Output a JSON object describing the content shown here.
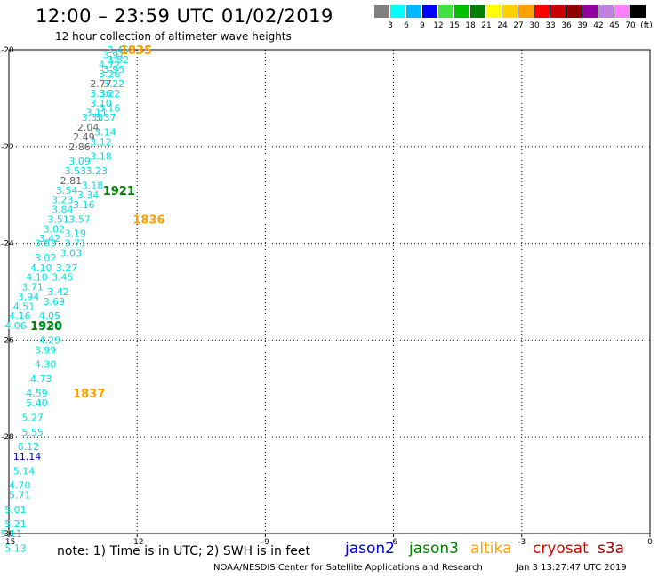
{
  "header": {
    "title": "12:00 – 23:59 UTC 01/02/2019",
    "subtitle": "12 hour collection of altimeter wave heights"
  },
  "colorbar": {
    "colors": [
      "#808080",
      "#00ffff",
      "#00b8ff",
      "#0000ff",
      "#40e040",
      "#00c000",
      "#008000",
      "#ffff00",
      "#ffd000",
      "#ffa000",
      "#ff0000",
      "#c80000",
      "#900000",
      "#9000a0",
      "#c080e0",
      "#ff80ff",
      "#000000"
    ],
    "labels": [
      "3",
      "6",
      "9",
      "12",
      "15",
      "18",
      "21",
      "24",
      "27",
      "30",
      "33",
      "36",
      "39",
      "42",
      "45",
      "70",
      "(ft)"
    ]
  },
  "map": {
    "lon_ticks": [
      "-15",
      "-12",
      "-9",
      "-6",
      "-3",
      "0"
    ],
    "lat_ticks": [
      "-20",
      "-22",
      "-24",
      "-26",
      "-28",
      "-30"
    ],
    "lon_values": [
      -15,
      -12,
      -9,
      -6,
      -3,
      0
    ],
    "lat_values": [
      -20,
      -22,
      -24,
      -26,
      -28,
      -30
    ],
    "time_labels": [
      {
        "text": "1835",
        "lon": -12.4,
        "lat": -20.0,
        "color": "#ffa000"
      },
      {
        "text": "1921",
        "lon": -12.8,
        "lat": -22.9,
        "color": "#008000"
      },
      {
        "text": "1836",
        "lon": -12.1,
        "lat": -23.5,
        "color": "#ffa000"
      },
      {
        "text": "1920",
        "lon": -14.5,
        "lat": -25.7,
        "color": "#008000"
      },
      {
        "text": "1837",
        "lon": -13.5,
        "lat": -27.1,
        "color": "#ffa000"
      }
    ],
    "wave_heights": [
      {
        "text": "3.45",
        "lon": -12.7,
        "lat": -20.0,
        "color": "#00e0e0"
      },
      {
        "text": "3.91",
        "lon": -12.8,
        "lat": -20.1,
        "color": "#00e0e0"
      },
      {
        "text": "3.52",
        "lon": -12.7,
        "lat": -20.2,
        "color": "#00e0e0"
      },
      {
        "text": "4.72",
        "lon": -12.9,
        "lat": -20.3,
        "color": "#00e0e0"
      },
      {
        "text": "3.26",
        "lon": -12.9,
        "lat": -20.5,
        "color": "#00e0e0"
      },
      {
        "text": "3.95",
        "lon": -12.8,
        "lat": -20.4,
        "color": "#00e0e0"
      },
      {
        "text": "2.77",
        "lon": -13.1,
        "lat": -20.7,
        "color": "#606060"
      },
      {
        "text": "3.22",
        "lon": -12.8,
        "lat": -20.7,
        "color": "#00e0e0"
      },
      {
        "text": "3.36",
        "lon": -13.1,
        "lat": -20.9,
        "color": "#00e0e0"
      },
      {
        "text": "3.22",
        "lon": -12.9,
        "lat": -20.9,
        "color": "#00e0e0"
      },
      {
        "text": "3.10",
        "lon": -13.1,
        "lat": -21.1,
        "color": "#00e0e0"
      },
      {
        "text": "3.16",
        "lon": -12.9,
        "lat": -21.2,
        "color": "#00e0e0"
      },
      {
        "text": "3.11",
        "lon": -13.2,
        "lat": -21.3,
        "color": "#00e0e0"
      },
      {
        "text": "3.33",
        "lon": -13.3,
        "lat": -21.4,
        "color": "#00e0e0"
      },
      {
        "text": "3.37",
        "lon": -13.0,
        "lat": -21.4,
        "color": "#00e0e0"
      },
      {
        "text": "2.04",
        "lon": -13.4,
        "lat": -21.6,
        "color": "#606060"
      },
      {
        "text": "3.14",
        "lon": -13.0,
        "lat": -21.7,
        "color": "#00e0e0"
      },
      {
        "text": "2.49",
        "lon": -13.5,
        "lat": -21.8,
        "color": "#606060"
      },
      {
        "text": "3.12",
        "lon": -13.1,
        "lat": -21.9,
        "color": "#00e0e0"
      },
      {
        "text": "2.86",
        "lon": -13.6,
        "lat": -22.0,
        "color": "#606060"
      },
      {
        "text": "3.18",
        "lon": -13.1,
        "lat": -22.2,
        "color": "#00e0e0"
      },
      {
        "text": "3.09",
        "lon": -13.6,
        "lat": -22.3,
        "color": "#00e0e0"
      },
      {
        "text": "3.53",
        "lon": -13.7,
        "lat": -22.5,
        "color": "#00e0e0"
      },
      {
        "text": "3.23",
        "lon": -13.2,
        "lat": -22.5,
        "color": "#00e0e0"
      },
      {
        "text": "2.81",
        "lon": -13.8,
        "lat": -22.7,
        "color": "#606060"
      },
      {
        "text": "3.18",
        "lon": -13.3,
        "lat": -22.8,
        "color": "#00e0e0"
      },
      {
        "text": "3.54",
        "lon": -13.9,
        "lat": -22.9,
        "color": "#00e0e0"
      },
      {
        "text": "3.34",
        "lon": -13.4,
        "lat": -23.0,
        "color": "#00e0e0"
      },
      {
        "text": "3.23",
        "lon": -14.0,
        "lat": -23.1,
        "color": "#00e0e0"
      },
      {
        "text": "3.16",
        "lon": -13.5,
        "lat": -23.2,
        "color": "#00e0e0"
      },
      {
        "text": "3.84",
        "lon": -14.0,
        "lat": -23.3,
        "color": "#00e0e0"
      },
      {
        "text": "3.51",
        "lon": -14.1,
        "lat": -23.5,
        "color": "#00e0e0"
      },
      {
        "text": "3.57",
        "lon": -13.6,
        "lat": -23.5,
        "color": "#00e0e0"
      },
      {
        "text": "3.02",
        "lon": -14.2,
        "lat": -23.7,
        "color": "#00e0e0"
      },
      {
        "text": "3.19",
        "lon": -13.7,
        "lat": -23.8,
        "color": "#00e0e0"
      },
      {
        "text": "3.42",
        "lon": -14.3,
        "lat": -23.9,
        "color": "#00e0e0"
      },
      {
        "text": "3.71",
        "lon": -13.7,
        "lat": -24.0,
        "color": "#00e0e0"
      },
      {
        "text": "3.83",
        "lon": -14.4,
        "lat": -24.0,
        "color": "#00e0e0"
      },
      {
        "text": "3.03",
        "lon": -13.8,
        "lat": -24.2,
        "color": "#00e0e0"
      },
      {
        "text": "3.02",
        "lon": -14.4,
        "lat": -24.3,
        "color": "#00e0e0"
      },
      {
        "text": "3.27",
        "lon": -13.9,
        "lat": -24.5,
        "color": "#00e0e0"
      },
      {
        "text": "4.10",
        "lon": -14.5,
        "lat": -24.5,
        "color": "#00e0e0"
      },
      {
        "text": "4.10",
        "lon": -14.6,
        "lat": -24.7,
        "color": "#00e0e0"
      },
      {
        "text": "3.45",
        "lon": -14.0,
        "lat": -24.7,
        "color": "#00e0e0"
      },
      {
        "text": "3.71",
        "lon": -14.7,
        "lat": -24.9,
        "color": "#00e0e0"
      },
      {
        "text": "3.42",
        "lon": -14.1,
        "lat": -25.0,
        "color": "#00e0e0"
      },
      {
        "text": "3.94",
        "lon": -14.8,
        "lat": -25.1,
        "color": "#00e0e0"
      },
      {
        "text": "3.69",
        "lon": -14.2,
        "lat": -25.2,
        "color": "#00e0e0"
      },
      {
        "text": "4.51",
        "lon": -14.9,
        "lat": -25.3,
        "color": "#00e0e0"
      },
      {
        "text": "4.16",
        "lon": -15.0,
        "lat": -25.5,
        "color": "#00e0e0"
      },
      {
        "text": "4.05",
        "lon": -14.3,
        "lat": -25.5,
        "color": "#00e0e0"
      },
      {
        "text": "4.06",
        "lon": -15.1,
        "lat": -25.7,
        "color": "#00e0e0"
      },
      {
        "text": "4.03",
        "lon": -14.3,
        "lat": -25.7,
        "color": "#00e0e0"
      },
      {
        "text": "4.29",
        "lon": -14.3,
        "lat": -26.0,
        "color": "#00e0e0"
      },
      {
        "text": "3.99",
        "lon": -14.4,
        "lat": -26.2,
        "color": "#00e0e0"
      },
      {
        "text": "4.30",
        "lon": -14.4,
        "lat": -26.5,
        "color": "#00e0e0"
      },
      {
        "text": "4.73",
        "lon": -14.5,
        "lat": -26.8,
        "color": "#00e0e0"
      },
      {
        "text": "4.59",
        "lon": -14.6,
        "lat": -27.1,
        "color": "#00e0e0"
      },
      {
        "text": "5.40",
        "lon": -14.6,
        "lat": -27.3,
        "color": "#00e0e0"
      },
      {
        "text": "5.27",
        "lon": -14.7,
        "lat": -27.6,
        "color": "#00e0e0"
      },
      {
        "text": "5.55",
        "lon": -14.7,
        "lat": -27.9,
        "color": "#00e0e0"
      },
      {
        "text": "6.12",
        "lon": -14.8,
        "lat": -28.2,
        "color": "#00e0e0"
      },
      {
        "text": "11.14",
        "lon": -14.9,
        "lat": -28.4,
        "color": "#0000c0"
      },
      {
        "text": "5.14",
        "lon": -14.9,
        "lat": -28.7,
        "color": "#00e0e0"
      },
      {
        "text": "4.70",
        "lon": -15.0,
        "lat": -29.0,
        "color": "#00e0e0"
      },
      {
        "text": "5.71",
        "lon": -15.0,
        "lat": -29.2,
        "color": "#00e0e0"
      },
      {
        "text": "5.01",
        "lon": -15.1,
        "lat": -29.5,
        "color": "#00e0e0"
      },
      {
        "text": "5.21",
        "lon": -15.1,
        "lat": -29.8,
        "color": "#00e0e0"
      },
      {
        "text": "5.11",
        "lon": -15.2,
        "lat": -30.0,
        "color": "#00e0e0"
      },
      {
        "text": "5.13",
        "lon": -15.1,
        "lat": -30.3,
        "color": "#00e0e0"
      }
    ]
  },
  "footer": {
    "note": "note:  1) Time is in UTC; 2) SWH is in feet",
    "satellites": [
      {
        "name": "jason2",
        "color": "#0000e0"
      },
      {
        "name": "jason3",
        "color": "#008000"
      },
      {
        "name": "altika",
        "color": "#ffa000"
      },
      {
        "name": "cryosat",
        "color": "#e00000"
      },
      {
        "name": "s3a",
        "color": "#a00000"
      }
    ],
    "credit": "NOAA/NESDIS Center for Satellite Applications and Research",
    "timestamp": "Jan  3 13:27:47 UTC 2019"
  }
}
